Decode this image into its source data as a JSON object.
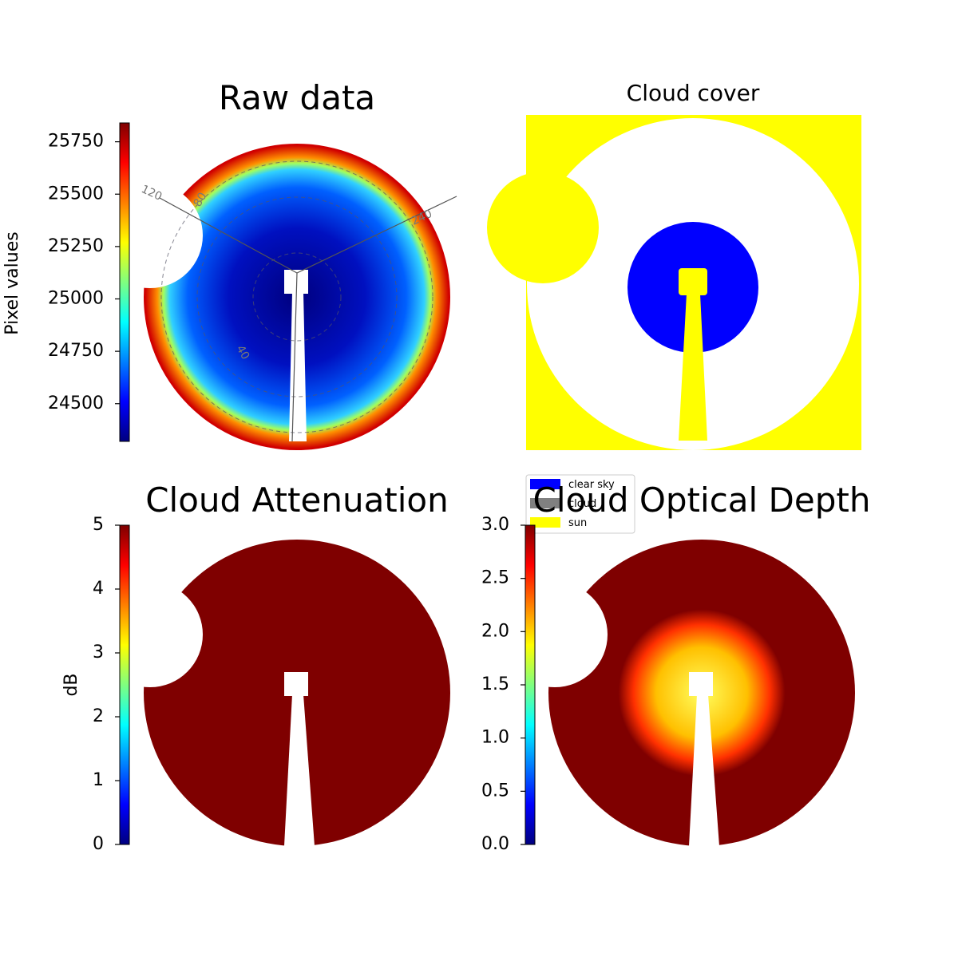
{
  "chart_data": [
    {
      "type": "image",
      "title": "Raw data",
      "colormap": "jet",
      "ylabel": "Pixel values",
      "ylim": [
        24320,
        25840
      ],
      "yticks": [
        24500,
        24750,
        25000,
        25250,
        25500,
        25750
      ],
      "annotations": [
        "120",
        "80",
        "240",
        "40"
      ]
    },
    {
      "type": "image",
      "title": "Cloud cover",
      "series": [
        {
          "name": "clear sky",
          "color": "#0000ff"
        },
        {
          "name": "cloud",
          "color": "#808080"
        },
        {
          "name": "sun",
          "color": "#ffff00"
        }
      ]
    },
    {
      "type": "image",
      "title": "Cloud Attenuation",
      "colormap": "jet",
      "ylabel": "dB",
      "ylim": [
        0,
        5
      ],
      "yticks": [
        0,
        1,
        2,
        3,
        4,
        5
      ]
    },
    {
      "type": "image",
      "title": "Cloud Optical Depth",
      "colormap": "jet",
      "ylim": [
        0,
        3
      ],
      "yticks": [
        {
          "value": 0,
          "label": "0.0"
        },
        {
          "value": 0.5,
          "label": "0.5"
        },
        {
          "value": 1,
          "label": "1.0"
        },
        {
          "value": 1.5,
          "label": "1.5"
        },
        {
          "value": 2,
          "label": "2.0"
        },
        {
          "value": 2.5,
          "label": "2.5"
        },
        {
          "value": 3,
          "label": "3.0"
        }
      ]
    }
  ]
}
